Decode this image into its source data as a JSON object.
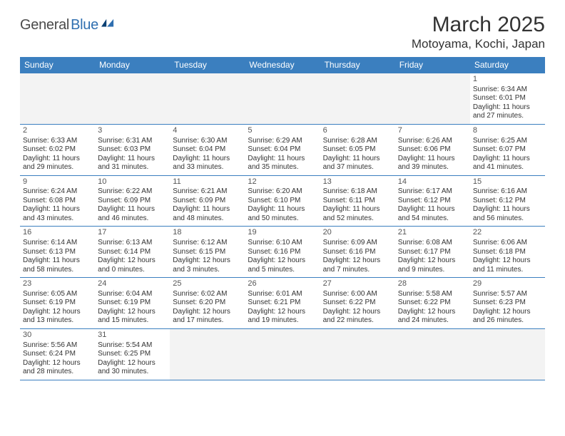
{
  "logo": {
    "dark": "General",
    "blue": "Blue"
  },
  "title": "March 2025",
  "location": "Motoyama, Kochi, Japan",
  "colors": {
    "header_bg": "#3b7fbf",
    "header_text": "#ffffff",
    "row_border": "#3b7fbf",
    "blank_bg": "#f3f3f3",
    "text": "#333333",
    "logo_dark": "#4a4a4a",
    "logo_blue": "#2f6fb0"
  },
  "dow": [
    "Sunday",
    "Monday",
    "Tuesday",
    "Wednesday",
    "Thursday",
    "Friday",
    "Saturday"
  ],
  "weeks": [
    [
      {
        "blank": true
      },
      {
        "blank": true
      },
      {
        "blank": true
      },
      {
        "blank": true
      },
      {
        "blank": true
      },
      {
        "blank": true
      },
      {
        "n": "1",
        "sr": "Sunrise: 6:34 AM",
        "ss": "Sunset: 6:01 PM",
        "dl": "Daylight: 11 hours and 27 minutes."
      }
    ],
    [
      {
        "n": "2",
        "sr": "Sunrise: 6:33 AM",
        "ss": "Sunset: 6:02 PM",
        "dl": "Daylight: 11 hours and 29 minutes."
      },
      {
        "n": "3",
        "sr": "Sunrise: 6:31 AM",
        "ss": "Sunset: 6:03 PM",
        "dl": "Daylight: 11 hours and 31 minutes."
      },
      {
        "n": "4",
        "sr": "Sunrise: 6:30 AM",
        "ss": "Sunset: 6:04 PM",
        "dl": "Daylight: 11 hours and 33 minutes."
      },
      {
        "n": "5",
        "sr": "Sunrise: 6:29 AM",
        "ss": "Sunset: 6:04 PM",
        "dl": "Daylight: 11 hours and 35 minutes."
      },
      {
        "n": "6",
        "sr": "Sunrise: 6:28 AM",
        "ss": "Sunset: 6:05 PM",
        "dl": "Daylight: 11 hours and 37 minutes."
      },
      {
        "n": "7",
        "sr": "Sunrise: 6:26 AM",
        "ss": "Sunset: 6:06 PM",
        "dl": "Daylight: 11 hours and 39 minutes."
      },
      {
        "n": "8",
        "sr": "Sunrise: 6:25 AM",
        "ss": "Sunset: 6:07 PM",
        "dl": "Daylight: 11 hours and 41 minutes."
      }
    ],
    [
      {
        "n": "9",
        "sr": "Sunrise: 6:24 AM",
        "ss": "Sunset: 6:08 PM",
        "dl": "Daylight: 11 hours and 43 minutes."
      },
      {
        "n": "10",
        "sr": "Sunrise: 6:22 AM",
        "ss": "Sunset: 6:09 PM",
        "dl": "Daylight: 11 hours and 46 minutes."
      },
      {
        "n": "11",
        "sr": "Sunrise: 6:21 AM",
        "ss": "Sunset: 6:09 PM",
        "dl": "Daylight: 11 hours and 48 minutes."
      },
      {
        "n": "12",
        "sr": "Sunrise: 6:20 AM",
        "ss": "Sunset: 6:10 PM",
        "dl": "Daylight: 11 hours and 50 minutes."
      },
      {
        "n": "13",
        "sr": "Sunrise: 6:18 AM",
        "ss": "Sunset: 6:11 PM",
        "dl": "Daylight: 11 hours and 52 minutes."
      },
      {
        "n": "14",
        "sr": "Sunrise: 6:17 AM",
        "ss": "Sunset: 6:12 PM",
        "dl": "Daylight: 11 hours and 54 minutes."
      },
      {
        "n": "15",
        "sr": "Sunrise: 6:16 AM",
        "ss": "Sunset: 6:12 PM",
        "dl": "Daylight: 11 hours and 56 minutes."
      }
    ],
    [
      {
        "n": "16",
        "sr": "Sunrise: 6:14 AM",
        "ss": "Sunset: 6:13 PM",
        "dl": "Daylight: 11 hours and 58 minutes."
      },
      {
        "n": "17",
        "sr": "Sunrise: 6:13 AM",
        "ss": "Sunset: 6:14 PM",
        "dl": "Daylight: 12 hours and 0 minutes."
      },
      {
        "n": "18",
        "sr": "Sunrise: 6:12 AM",
        "ss": "Sunset: 6:15 PM",
        "dl": "Daylight: 12 hours and 3 minutes."
      },
      {
        "n": "19",
        "sr": "Sunrise: 6:10 AM",
        "ss": "Sunset: 6:16 PM",
        "dl": "Daylight: 12 hours and 5 minutes."
      },
      {
        "n": "20",
        "sr": "Sunrise: 6:09 AM",
        "ss": "Sunset: 6:16 PM",
        "dl": "Daylight: 12 hours and 7 minutes."
      },
      {
        "n": "21",
        "sr": "Sunrise: 6:08 AM",
        "ss": "Sunset: 6:17 PM",
        "dl": "Daylight: 12 hours and 9 minutes."
      },
      {
        "n": "22",
        "sr": "Sunrise: 6:06 AM",
        "ss": "Sunset: 6:18 PM",
        "dl": "Daylight: 12 hours and 11 minutes."
      }
    ],
    [
      {
        "n": "23",
        "sr": "Sunrise: 6:05 AM",
        "ss": "Sunset: 6:19 PM",
        "dl": "Daylight: 12 hours and 13 minutes."
      },
      {
        "n": "24",
        "sr": "Sunrise: 6:04 AM",
        "ss": "Sunset: 6:19 PM",
        "dl": "Daylight: 12 hours and 15 minutes."
      },
      {
        "n": "25",
        "sr": "Sunrise: 6:02 AM",
        "ss": "Sunset: 6:20 PM",
        "dl": "Daylight: 12 hours and 17 minutes."
      },
      {
        "n": "26",
        "sr": "Sunrise: 6:01 AM",
        "ss": "Sunset: 6:21 PM",
        "dl": "Daylight: 12 hours and 19 minutes."
      },
      {
        "n": "27",
        "sr": "Sunrise: 6:00 AM",
        "ss": "Sunset: 6:22 PM",
        "dl": "Daylight: 12 hours and 22 minutes."
      },
      {
        "n": "28",
        "sr": "Sunrise: 5:58 AM",
        "ss": "Sunset: 6:22 PM",
        "dl": "Daylight: 12 hours and 24 minutes."
      },
      {
        "n": "29",
        "sr": "Sunrise: 5:57 AM",
        "ss": "Sunset: 6:23 PM",
        "dl": "Daylight: 12 hours and 26 minutes."
      }
    ],
    [
      {
        "n": "30",
        "sr": "Sunrise: 5:56 AM",
        "ss": "Sunset: 6:24 PM",
        "dl": "Daylight: 12 hours and 28 minutes."
      },
      {
        "n": "31",
        "sr": "Sunrise: 5:54 AM",
        "ss": "Sunset: 6:25 PM",
        "dl": "Daylight: 12 hours and 30 minutes."
      },
      {
        "blank": true
      },
      {
        "blank": true
      },
      {
        "blank": true
      },
      {
        "blank": true
      },
      {
        "blank": true
      }
    ]
  ]
}
